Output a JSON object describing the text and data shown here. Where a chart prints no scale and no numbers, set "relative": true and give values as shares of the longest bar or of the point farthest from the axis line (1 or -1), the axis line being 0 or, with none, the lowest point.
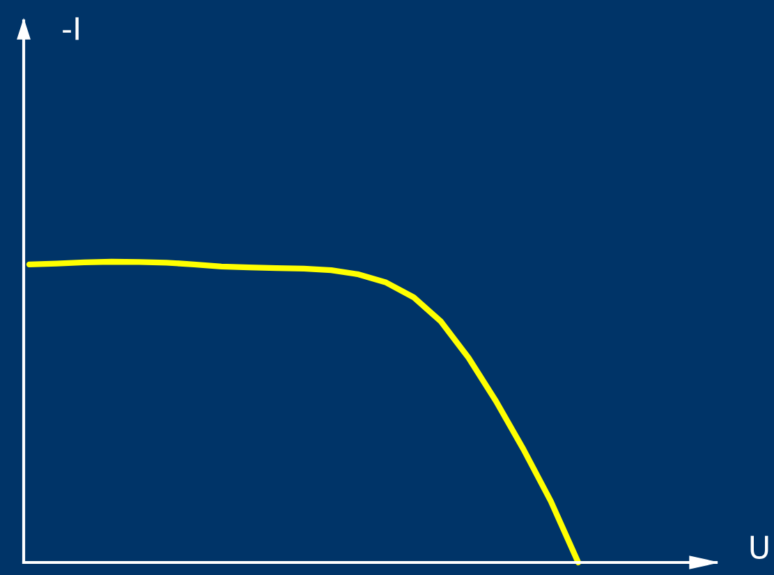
{
  "chart_data": {
    "type": "line",
    "relative": true,
    "annotations": [
      "-I",
      "U"
    ],
    "categories": [
      null,
      null,
      null,
      null,
      null,
      null,
      null,
      null,
      null,
      null,
      null,
      null,
      null,
      null,
      null,
      null,
      null,
      null,
      null,
      null,
      null
    ],
    "series": [
      {
        "color": "#ffff00",
        "values": [
          0.991,
          0.994,
          0.998,
          1,
          0.999,
          0.997,
          0.991,
          0.984,
          0.981,
          0.979,
          0.977,
          0.972,
          0.958,
          0.931,
          0.882,
          0.801,
          0.681,
          0.537,
          0.377,
          0.204,
          0
        ]
      }
    ],
    "grid": false,
    "legend": false,
    "marker": "none",
    "line_style": "solid"
  }
}
